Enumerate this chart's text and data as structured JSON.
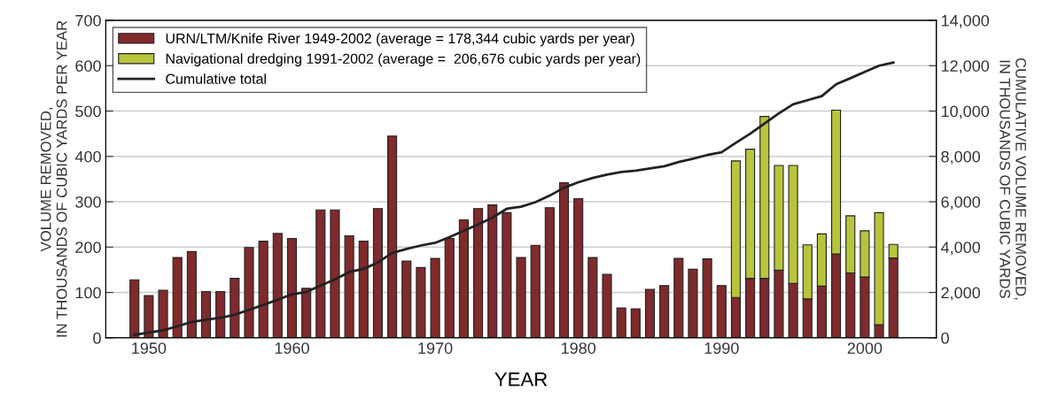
{
  "chart_data": {
    "type": "bar",
    "stacked": true,
    "xlabel": "YEAR",
    "ylabel": "VOLUME REMOVED,\nIN THOUSANDS OF CUBIC YARDS PER YEAR",
    "y2label": "CUMULATIVE VOLUME REMOVED,\nIN THOUSANDS OF CUBIC YARDS",
    "x": [
      1949,
      1950,
      1951,
      1952,
      1953,
      1954,
      1955,
      1956,
      1957,
      1958,
      1959,
      1960,
      1961,
      1962,
      1963,
      1964,
      1965,
      1966,
      1967,
      1968,
      1969,
      1970,
      1971,
      1972,
      1973,
      1974,
      1975,
      1976,
      1977,
      1978,
      1979,
      1980,
      1981,
      1982,
      1983,
      1984,
      1985,
      1986,
      1987,
      1988,
      1989,
      1990,
      1991,
      1992,
      1993,
      1994,
      1995,
      1996,
      1997,
      1998,
      1999,
      2000,
      2001,
      2002
    ],
    "series": [
      {
        "name": "URN/LTM/Knife River 1949-2002 (average = 178,344 cubic yards per year)",
        "color": "#7f2a2c",
        "values": [
          128,
          93,
          105,
          177,
          190,
          102,
          102,
          131,
          199,
          213,
          230,
          219,
          109,
          282,
          282,
          225,
          213,
          285,
          445,
          169,
          155,
          175,
          219,
          260,
          285,
          293,
          276,
          177,
          204,
          287,
          342,
          307,
          177,
          140,
          66,
          64,
          107,
          115,
          175,
          151,
          174,
          115,
          89,
          131,
          131,
          149,
          120,
          86,
          114,
          185,
          143,
          134,
          29,
          176
        ]
      },
      {
        "name": "Navigational dredging 1991-2002 (average =  206,676 cubic yards per year)",
        "color": "#b8c43c",
        "values": [
          null,
          null,
          null,
          null,
          null,
          null,
          null,
          null,
          null,
          null,
          null,
          null,
          null,
          null,
          null,
          null,
          null,
          null,
          null,
          null,
          null,
          null,
          null,
          null,
          null,
          null,
          null,
          null,
          null,
          null,
          null,
          null,
          null,
          null,
          null,
          null,
          null,
          null,
          null,
          null,
          null,
          null,
          301,
          285,
          357,
          231,
          260,
          119,
          115,
          317,
          126,
          102,
          247,
          30
        ]
      },
      {
        "name": "Cumulative total",
        "type": "line",
        "axis": "y2",
        "color": "#222222",
        "values": [
          130,
          230,
          330,
          510,
          700,
          800,
          880,
          1020,
          1230,
          1450,
          1680,
          1920,
          2020,
          2300,
          2580,
          2900,
          3040,
          3320,
          3740,
          3920,
          4070,
          4190,
          4440,
          4720,
          5000,
          5300,
          5690,
          5780,
          5980,
          6270,
          6620,
          6860,
          7050,
          7200,
          7310,
          7370,
          7470,
          7570,
          7750,
          7900,
          8060,
          8180,
          8600,
          9000,
          9450,
          9900,
          10300,
          10480,
          10660,
          11180,
          11450,
          11730,
          12000,
          12140
        ]
      }
    ],
    "xlim": [
      1947,
      2005
    ],
    "xticks": [
      1950,
      1960,
      1970,
      1980,
      1990,
      2000
    ],
    "ylim": [
      0,
      700
    ],
    "yticks": [
      0,
      100,
      200,
      300,
      400,
      500,
      600,
      700
    ],
    "y2lim": [
      0,
      14000
    ],
    "y2ticks": [
      {
        "value": 0,
        "label": "0"
      },
      {
        "value": 2000,
        "label": "2,000"
      },
      {
        "value": 4000,
        "label": "4,000"
      },
      {
        "value": 6000,
        "label": "6,000"
      },
      {
        "value": 8000,
        "label": "8,000"
      },
      {
        "value": 10000,
        "label": "10,000"
      },
      {
        "value": 12000,
        "label": "12,000"
      },
      {
        "value": 14000,
        "label": "14,000"
      }
    ],
    "grid": "y",
    "legend": "top left"
  }
}
